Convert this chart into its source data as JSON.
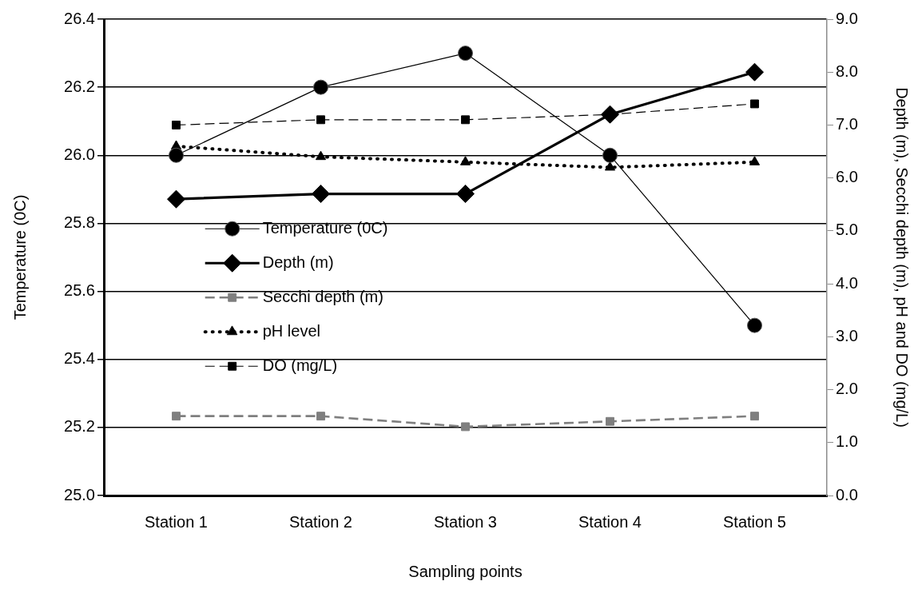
{
  "chart_data": {
    "type": "line",
    "xlabel": "Sampling points",
    "ylabel": "Temperature (0C)",
    "y2label": "Depth (m), Secchi depth (m), pH and DO (mg/L)",
    "categories": [
      "Station 1",
      "Station 2",
      "Station 3",
      "Station 4",
      "Station 5"
    ],
    "series": [
      {
        "name": "Temperature (0C)",
        "color": "#000000",
        "values": [
          26.0,
          26.2,
          26.3,
          26.0,
          25.5
        ],
        "marker": "circle",
        "line_style": "solid"
      },
      {
        "name": "Depth (m)",
        "color": "#000000",
        "values": [
          5.6,
          5.7,
          5.7,
          7.2,
          8.0
        ],
        "axis": "y2",
        "marker": "diamond",
        "line_style": "solid"
      },
      {
        "name": "Secchi depth (m)",
        "color": "#7f7f7f",
        "values": [
          1.5,
          1.5,
          1.3,
          1.4,
          1.5
        ],
        "axis": "y2",
        "marker": "square",
        "line_style": "dashed"
      },
      {
        "name": "pH level",
        "color": "#000000",
        "values": [
          6.6,
          6.4,
          6.3,
          6.2,
          6.3
        ],
        "axis": "y2",
        "marker": "triangle",
        "line_style": "dotted"
      },
      {
        "name": "DO (mg/L)",
        "color": "#000000",
        "values": [
          7.0,
          7.1,
          7.1,
          7.2,
          7.4
        ],
        "axis": "y2",
        "marker": "square",
        "line_style": "dashed"
      }
    ],
    "ylim": [
      25.0,
      26.4
    ],
    "yticks": [
      {
        "value": 25,
        "label": "25.0"
      },
      {
        "value": 25.2,
        "label": "25.2"
      },
      {
        "value": 25.4,
        "label": "25.4"
      },
      {
        "value": 25.6,
        "label": "25.6"
      },
      {
        "value": 25.8,
        "label": "25.8"
      },
      {
        "value": 26,
        "label": "26.0"
      },
      {
        "value": 26.2,
        "label": "26.2"
      },
      {
        "value": 26.4,
        "label": "26.4"
      }
    ],
    "y2lim": [
      0.0,
      9.0
    ],
    "y2ticks": [
      {
        "value": 0,
        "label": "0.0"
      },
      {
        "value": 1,
        "label": "1.0"
      },
      {
        "value": 2,
        "label": "2.0"
      },
      {
        "value": 3,
        "label": "3.0"
      },
      {
        "value": 4,
        "label": "4.0"
      },
      {
        "value": 5,
        "label": "5.0"
      },
      {
        "value": 6,
        "label": "6.0"
      },
      {
        "value": 7,
        "label": "7.0"
      },
      {
        "value": 8,
        "label": "8.0"
      },
      {
        "value": 9,
        "label": "9.0"
      }
    ],
    "grid": "y",
    "legend": "left"
  }
}
